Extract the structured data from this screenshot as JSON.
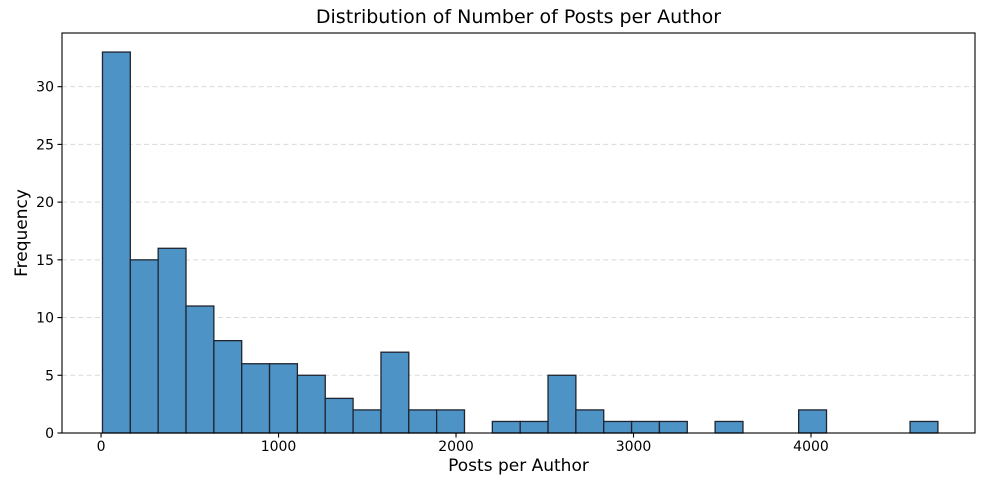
{
  "chart_data": {
    "type": "histogram",
    "title": "Distribution of Number of Posts per Author",
    "xlabel": "Posts per Author",
    "ylabel": "Frequency",
    "bin_start": 8,
    "bin_width": 156.9,
    "counts": [
      33,
      15,
      16,
      11,
      8,
      6,
      6,
      5,
      3,
      2,
      7,
      2,
      2,
      0,
      1,
      1,
      5,
      2,
      1,
      1,
      1,
      0,
      1,
      0,
      0,
      2,
      0,
      0,
      0,
      1
    ],
    "xticks": [
      0,
      1000,
      2000,
      3000,
      4000
    ],
    "yticks": [
      0,
      5,
      10,
      15,
      20,
      25,
      30
    ],
    "xlim": [
      -220,
      4924
    ],
    "ylim": [
      0,
      34.65
    ],
    "grid": {
      "axis": "y",
      "style": "dashed"
    },
    "legend": "none",
    "colors": {
      "bar_fill": "#4e93c6",
      "bar_edge": "#1f2530",
      "grid_line": "#d9d9d9",
      "spine": "#000000",
      "tick": "#000000",
      "background": "#ffffff"
    }
  }
}
